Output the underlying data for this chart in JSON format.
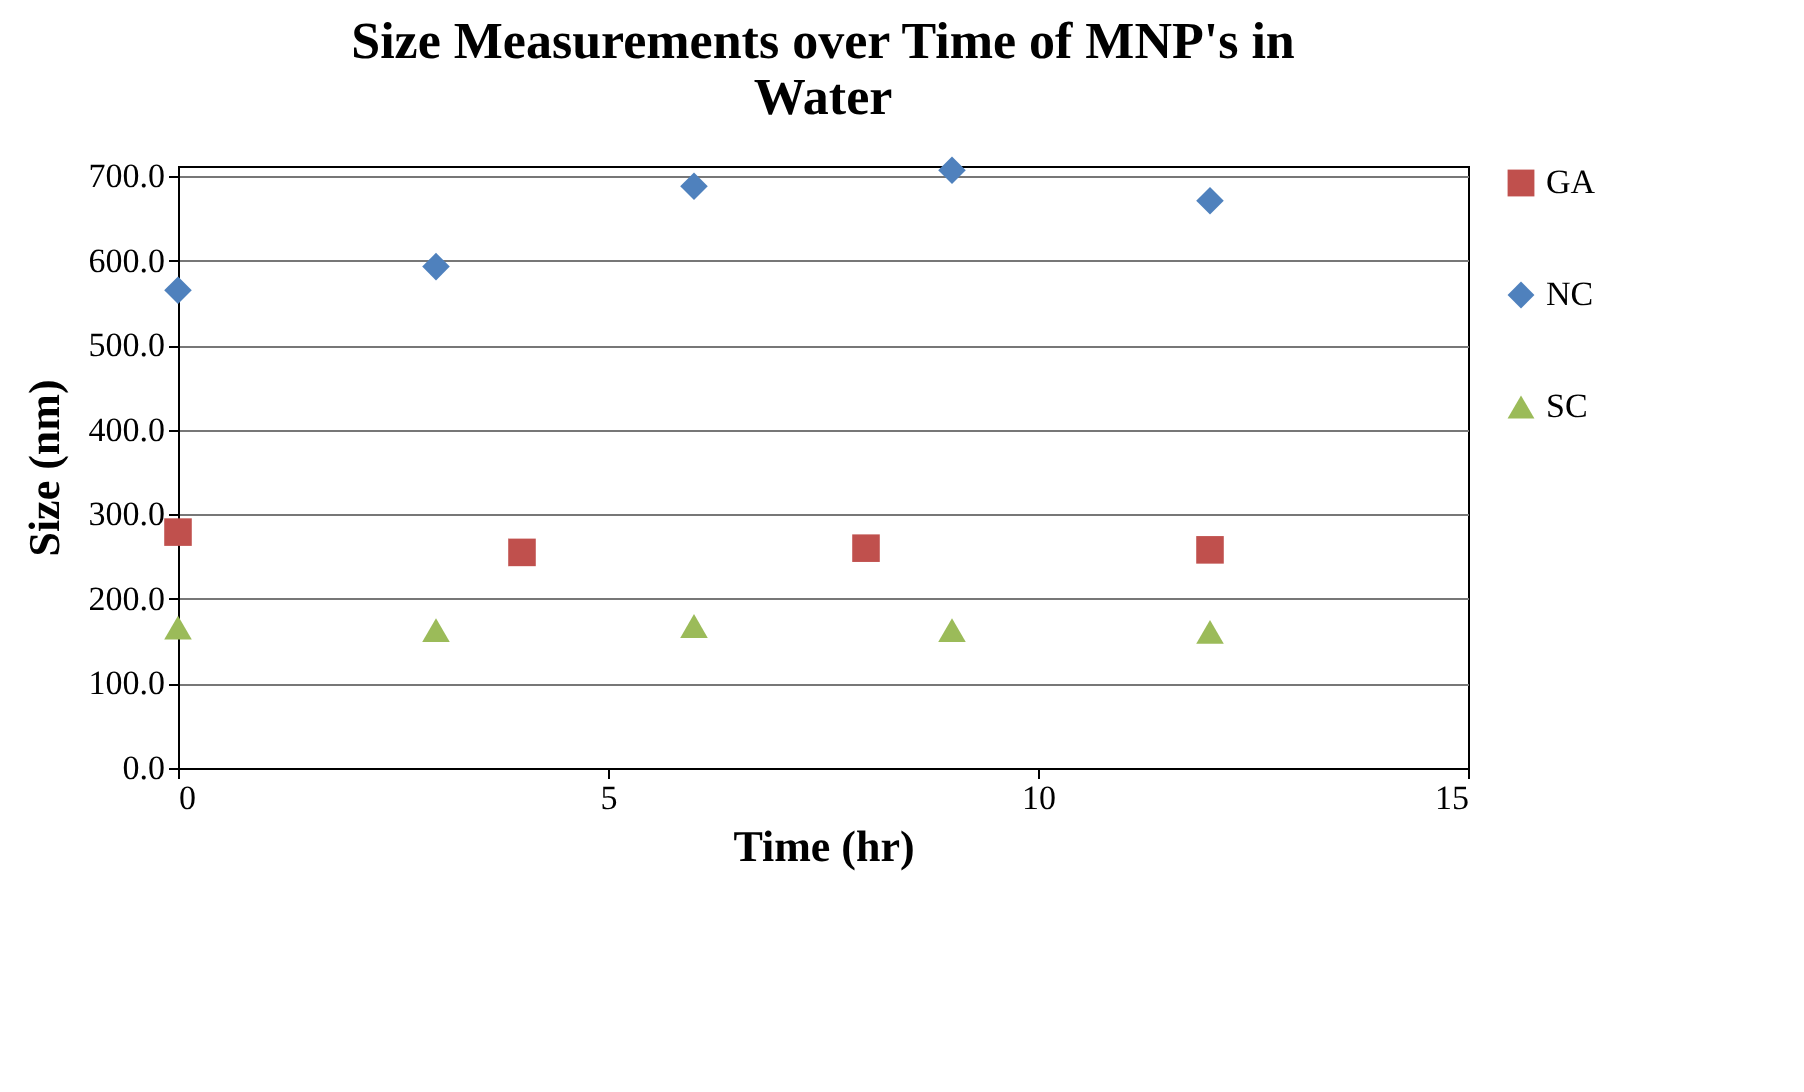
{
  "chart_data": {
    "type": "scatter",
    "title": "Size Measurements over Time of MNP's in Water",
    "xlabel": "Time (hr)",
    "ylabel": "Size (nm)",
    "series": [
      {
        "name": "GA",
        "color": "#c0504d",
        "marker": "square",
        "x": [
          0,
          4,
          8,
          12
        ],
        "values": [
          279,
          255,
          260,
          258
        ]
      },
      {
        "name": "NC",
        "color": "#4f81bd",
        "marker": "diamond",
        "x": [
          0,
          3,
          6,
          9,
          12
        ],
        "values": [
          565,
          593,
          688,
          707,
          671
        ]
      },
      {
        "name": "SC",
        "color": "#9bbb59",
        "marker": "triangle",
        "x": [
          0,
          3,
          6,
          9,
          12
        ],
        "values": [
          166,
          163,
          168,
          163,
          161
        ]
      }
    ],
    "xlim": [
      0,
      15
    ],
    "xticks": [
      0,
      5,
      10,
      15
    ],
    "ylim": [
      0,
      712
    ],
    "yticks": [
      {
        "value": 0,
        "label": "0.0"
      },
      {
        "value": 100,
        "label": "100.0"
      },
      {
        "value": 200,
        "label": "200.0"
      },
      {
        "value": 300,
        "label": "300.0"
      },
      {
        "value": 400,
        "label": "400.0"
      },
      {
        "value": 500,
        "label": "500.0"
      },
      {
        "value": 600,
        "label": "600.0"
      },
      {
        "value": 700,
        "label": "700.0"
      }
    ],
    "grid": "y",
    "legend": "right"
  }
}
